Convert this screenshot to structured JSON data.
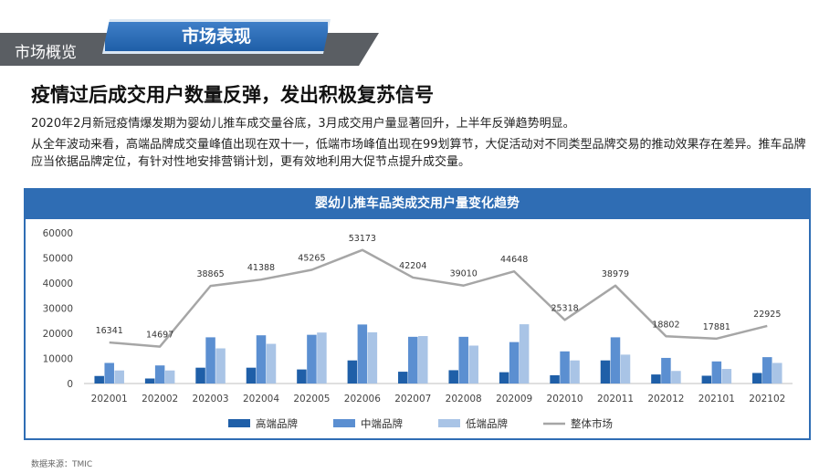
{
  "header": {
    "section_title": "市场概览",
    "tab_label": "市场表现"
  },
  "content": {
    "headline": "疫情过后成交用户数量反弹，发出积极复苏信号",
    "paragraph1": "2020年2月新冠疫情爆发期为婴幼儿推车成交量谷底，3月成交用户量显著回升，上半年反弹趋势明显。",
    "paragraph2": "从全年波动来看，高端品牌成交量峰值出现在双十一，低端市场峰值出现在99划算节，大促活动对不同类型品牌交易的推动效果存在差异。推车品牌应当依据品牌定位，有针对性地安排营销计划，更有效地利用大促节点提升成交量。"
  },
  "source": "数据来源：TMIC",
  "chart_data": {
    "type": "bar",
    "title": "婴幼儿推车品类成交用户量变化趋势",
    "categories": [
      "202001",
      "202002",
      "202003",
      "202004",
      "202005",
      "202006",
      "202007",
      "202008",
      "202009",
      "202010",
      "202011",
      "202012",
      "202101",
      "202102"
    ],
    "ylim": [
      0,
      60000
    ],
    "yticks": [
      0,
      10000,
      20000,
      30000,
      40000,
      50000,
      60000
    ],
    "series": [
      {
        "name": "高端品牌",
        "type": "bar",
        "color": "#1f5fa8",
        "values": [
          3000,
          2000,
          6300,
          6300,
          5600,
          9200,
          4700,
          5300,
          4500,
          3300,
          9200,
          3600,
          3100,
          4200
        ]
      },
      {
        "name": "中端品牌",
        "type": "bar",
        "color": "#5b8fd1",
        "values": [
          8200,
          7200,
          18400,
          19200,
          19400,
          23500,
          18600,
          18600,
          16500,
          12800,
          18400,
          10200,
          8800,
          10500
        ]
      },
      {
        "name": "低端品牌",
        "type": "bar",
        "color": "#a9c4e6",
        "values": [
          5200,
          5200,
          14000,
          15800,
          20300,
          20400,
          18900,
          15100,
          23600,
          9200,
          11500,
          5000,
          5800,
          8200
        ]
      },
      {
        "name": "整体市场",
        "type": "line",
        "color": "#a6a6a6",
        "values": [
          16341,
          14697,
          38865,
          41388,
          45265,
          53173,
          42204,
          39010,
          44648,
          25318,
          38979,
          18802,
          17881,
          22925
        ]
      }
    ],
    "legend_position": "bottom"
  }
}
